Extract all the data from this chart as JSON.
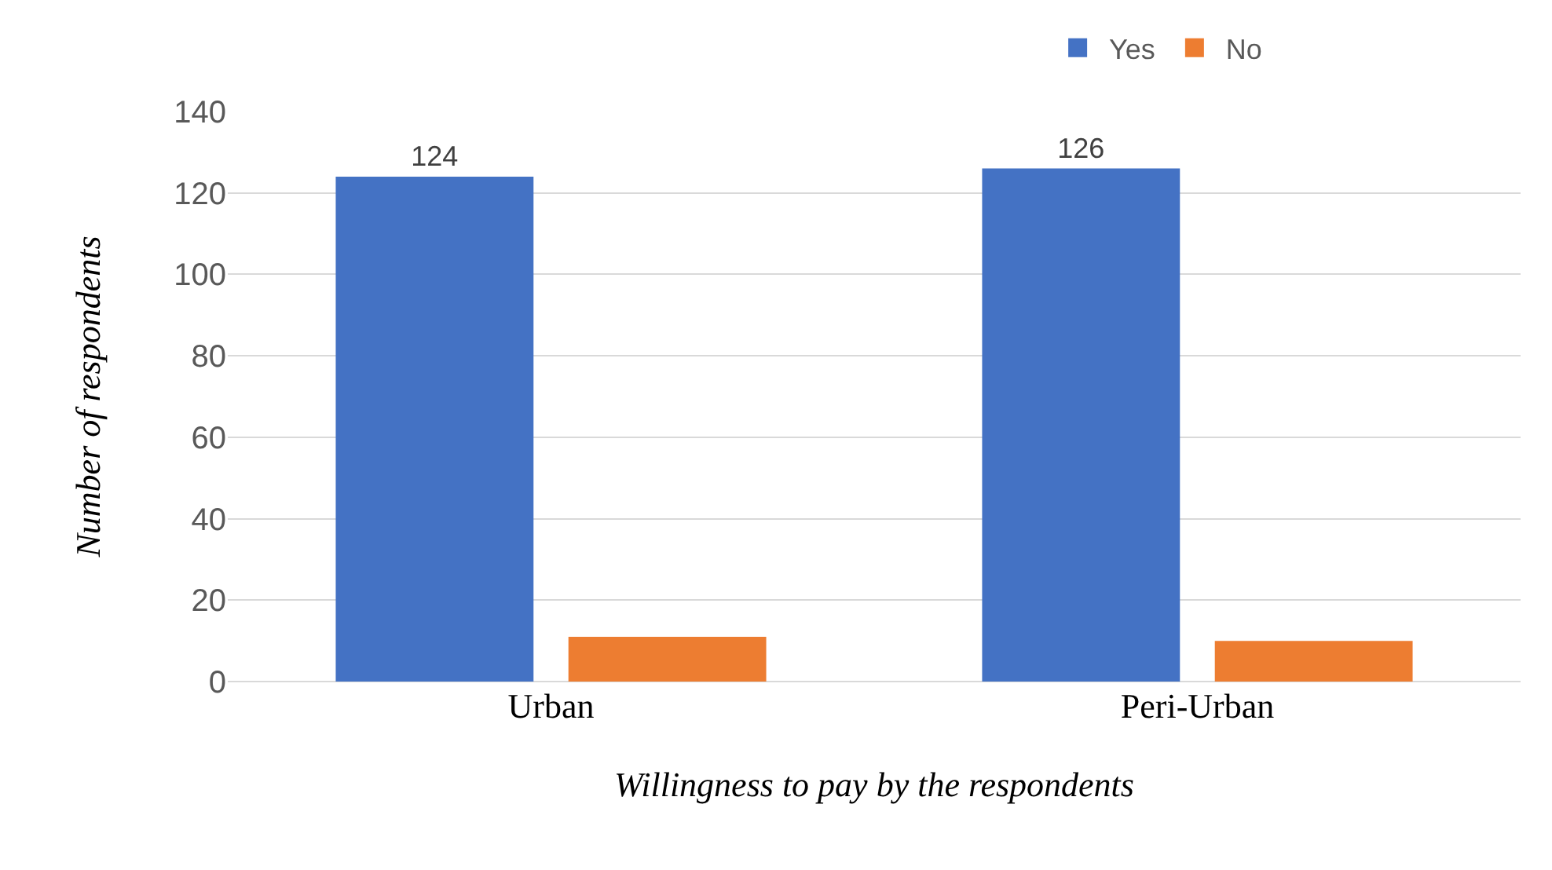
{
  "chart_data": {
    "type": "bar",
    "xlabel": "Willingness to pay by the respondents",
    "ylabel": "Number of respondents",
    "categories": [
      "Urban",
      "Peri-Urban"
    ],
    "series": [
      {
        "name": "Yes",
        "color": "#4472c4",
        "values": [
          124,
          126
        ],
        "value_labels": [
          "124",
          "126"
        ]
      },
      {
        "name": "No",
        "color": "#ed7d31",
        "values": [
          11,
          10
        ]
      }
    ],
    "ylim": [
      0,
      140
    ],
    "yticks": [
      0,
      20,
      40,
      60,
      80,
      100,
      120,
      140
    ],
    "grid": "y",
    "legend": "top right"
  }
}
